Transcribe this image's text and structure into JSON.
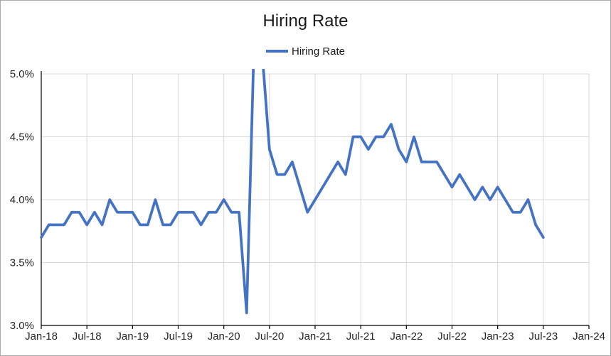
{
  "chart_data": {
    "type": "line",
    "title": "Hiring Rate",
    "legend": [
      {
        "label": "Hiring Rate",
        "color": "#4472C4"
      }
    ],
    "x_start_label": "Jan-18",
    "x_end_label": "Jan-24",
    "x_total_months": 72,
    "x_tick_labels": [
      "Jan-18",
      "Jul-18",
      "Jan-19",
      "Jul-19",
      "Jan-20",
      "Jul-20",
      "Jan-21",
      "Jul-21",
      "Jan-22",
      "Jul-22",
      "Jan-23",
      "Jul-23",
      "Jan-24"
    ],
    "x_tick_interval_months": 6,
    "y_tick_labels": [
      "3.0%",
      "3.5%",
      "4.0%",
      "4.5%",
      "5.0%"
    ],
    "ylim": [
      3.0,
      5.0
    ],
    "y_values_are_percent": true,
    "grid": "on",
    "legend_position": "top-center",
    "note_clipping": "May-20 and Jun-20 values exceed the 5.0% axis maximum and are clipped at the plot top",
    "series": [
      {
        "name": "Hiring Rate",
        "cadence": "monthly",
        "first_month": "Jan-18",
        "last_month": "Jul-23",
        "values": [
          3.7,
          3.8,
          3.8,
          3.8,
          3.9,
          3.9,
          3.8,
          3.9,
          3.8,
          4.0,
          3.9,
          3.9,
          3.9,
          3.8,
          3.8,
          4.0,
          3.8,
          3.8,
          3.9,
          3.9,
          3.9,
          3.8,
          3.9,
          3.9,
          4.0,
          3.9,
          3.9,
          3.1,
          5.3,
          5.2,
          4.4,
          4.2,
          4.2,
          4.3,
          4.1,
          3.9,
          4.0,
          4.1,
          4.2,
          4.3,
          4.2,
          4.5,
          4.5,
          4.4,
          4.5,
          4.5,
          4.6,
          4.4,
          4.3,
          4.5,
          4.3,
          4.3,
          4.3,
          4.2,
          4.1,
          4.2,
          4.1,
          4.0,
          4.1,
          4.0,
          4.1,
          4.0,
          3.9,
          3.9,
          4.0,
          3.8,
          3.7
        ]
      }
    ],
    "colors": {
      "line": "#4472C4",
      "gridline": "#d9d9d9",
      "axis": "#000000",
      "text": "#262626",
      "title_text": "#1a1a1a",
      "outer_border": "#ababab",
      "background": "#ffffff"
    }
  }
}
